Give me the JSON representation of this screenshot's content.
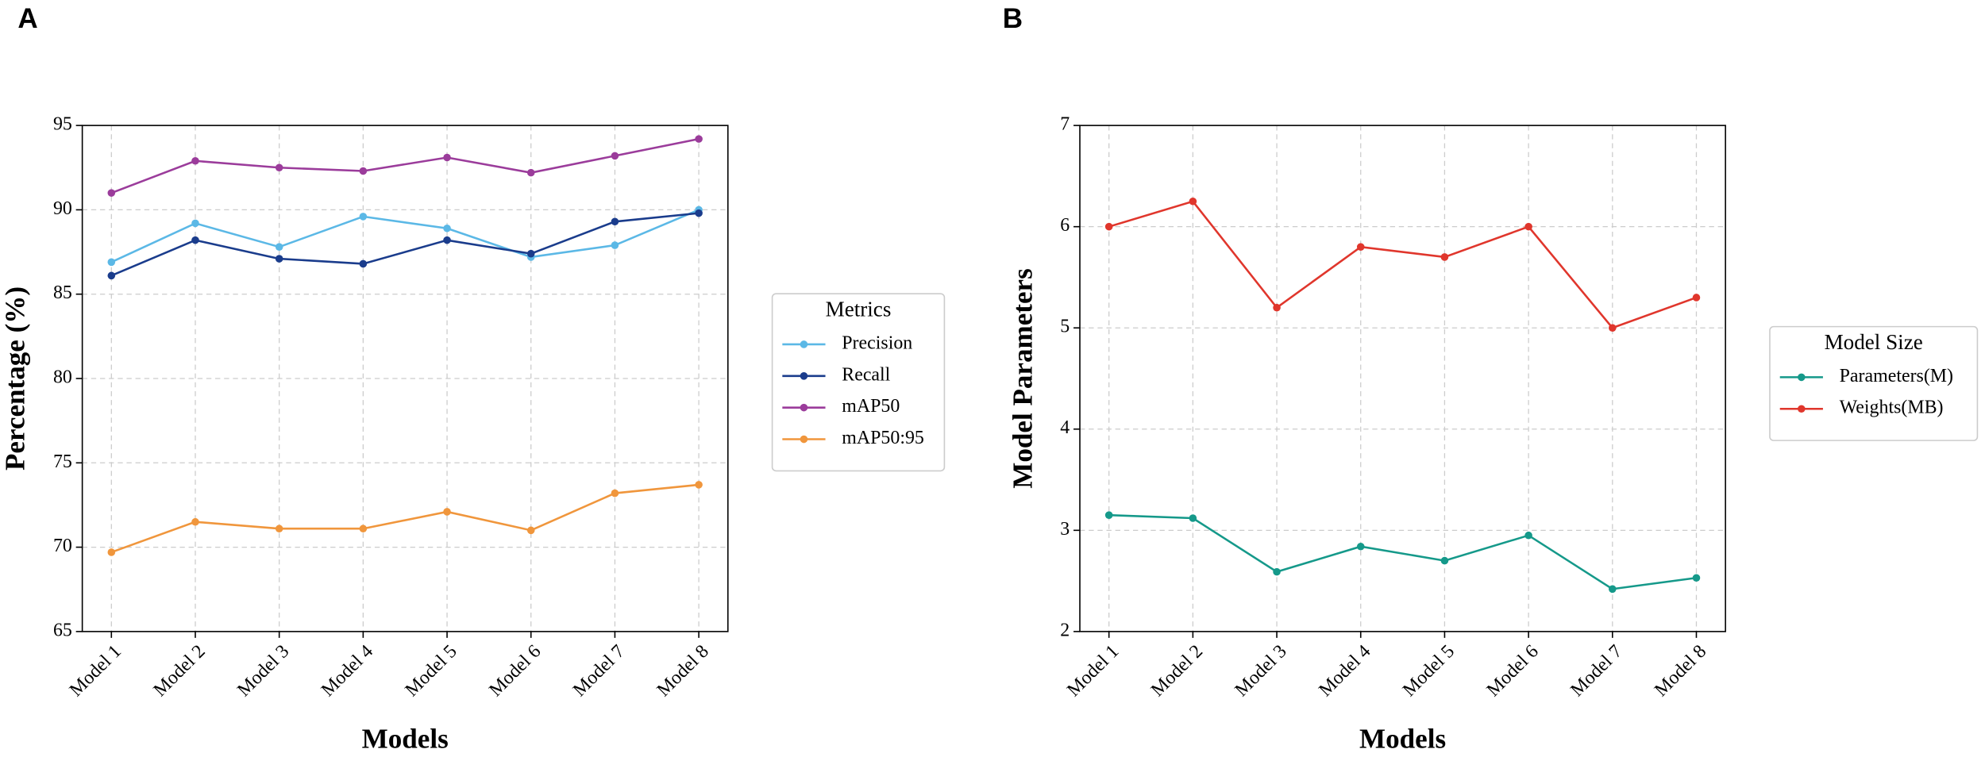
{
  "chart_data": [
    {
      "type": "line",
      "panel_label": "A",
      "x_label": "Models",
      "y_label": "Percentage (%)",
      "legend_title": "Metrics",
      "legend": "right",
      "grid": true,
      "categories": [
        "Model 1",
        "Model 2",
        "Model 3",
        "Model 4",
        "Model 5",
        "Model 6",
        "Model 7",
        "Model 8"
      ],
      "ylim": [
        65,
        95
      ],
      "yticks": [
        65,
        70,
        75,
        80,
        85,
        90,
        95
      ],
      "series": [
        {
          "name": "Precision",
          "color": "#5bb8e6",
          "values": [
            86.9,
            89.2,
            87.8,
            89.6,
            88.9,
            87.2,
            87.9,
            90.0
          ]
        },
        {
          "name": "Recall",
          "color": "#1a3c8c",
          "values": [
            86.1,
            88.2,
            87.1,
            86.8,
            88.2,
            87.4,
            89.3,
            89.8
          ]
        },
        {
          "name": "mAP50",
          "color": "#9b3c9b",
          "values": [
            91.0,
            92.9,
            92.5,
            92.3,
            93.1,
            92.2,
            93.2,
            94.2
          ]
        },
        {
          "name": "mAP50:95",
          "color": "#f0963c",
          "values": [
            69.7,
            71.5,
            71.1,
            71.1,
            72.1,
            71.0,
            73.2,
            73.7
          ]
        }
      ]
    },
    {
      "type": "line",
      "panel_label": "B",
      "x_label": "Models",
      "y_label": "Model Parameters",
      "legend_title": "Model Size",
      "legend": "right",
      "grid": true,
      "categories": [
        "Model 1",
        "Model 2",
        "Model 3",
        "Model 4",
        "Model 5",
        "Model 6",
        "Model 7",
        "Model 8"
      ],
      "ylim": [
        2,
        7
      ],
      "yticks": [
        2,
        3,
        4,
        5,
        6,
        7
      ],
      "series": [
        {
          "name": "Parameters(M)",
          "color": "#15998a",
          "values": [
            3.15,
            3.12,
            2.59,
            2.84,
            2.7,
            2.95,
            2.42,
            2.53
          ]
        },
        {
          "name": "Weights(MB)",
          "color": "#e0362c",
          "values": [
            6.0,
            6.25,
            5.2,
            5.8,
            5.7,
            6.0,
            5.0,
            5.3
          ]
        }
      ]
    }
  ]
}
